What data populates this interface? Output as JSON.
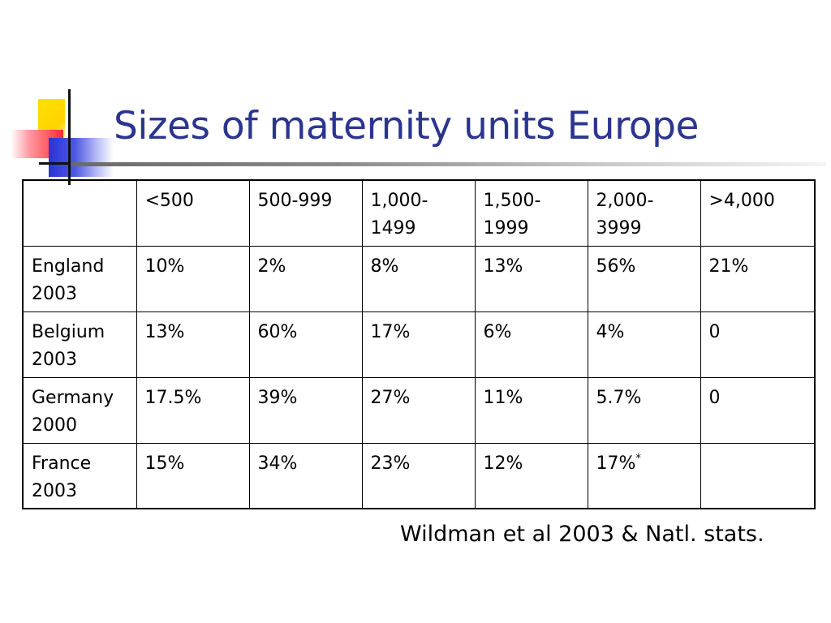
{
  "slide": {
    "title": "Sizes of maternity units Europe",
    "source": "Wildman et al 2003 & Natl. stats."
  },
  "table": {
    "header_corner": "",
    "columns": [
      "<500",
      "500-999",
      "1,000-\n1499",
      "1,500-\n1999",
      "2,000-\n3999",
      ">4,000"
    ],
    "rows": [
      {
        "label": "England\n2003",
        "cells": [
          {
            "value": "10%"
          },
          {
            "value": "2%"
          },
          {
            "value": "8%"
          },
          {
            "value": "13%"
          },
          {
            "value": "56%"
          },
          {
            "value": "21%"
          }
        ]
      },
      {
        "label": "Belgium\n2003",
        "cells": [
          {
            "value": "13%"
          },
          {
            "value": "60%"
          },
          {
            "value": "17%"
          },
          {
            "value": "6%"
          },
          {
            "value": "4%"
          },
          {
            "value": "0"
          }
        ]
      },
      {
        "label": "Germany\n2000",
        "cells": [
          {
            "value": "17.5%"
          },
          {
            "value": "39%"
          },
          {
            "value": "27%"
          },
          {
            "value": "11%"
          },
          {
            "value": "5.7%"
          },
          {
            "value": "0"
          }
        ]
      },
      {
        "label": "France\n2003",
        "cells": [
          {
            "value": "15%"
          },
          {
            "value": "34%"
          },
          {
            "value": "23%"
          },
          {
            "value": "12%"
          },
          {
            "value": "17%",
            "note": "*"
          },
          {
            "value": ""
          }
        ]
      }
    ]
  },
  "colors": {
    "title": "#2b3590",
    "logo_yellow": "#ffd400",
    "logo_red": "#ff2a33",
    "logo_blue": "#2a34d8"
  }
}
